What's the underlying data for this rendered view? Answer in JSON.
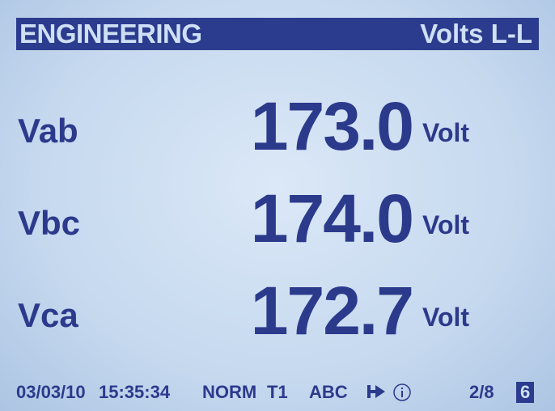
{
  "header": {
    "title": "ENGINEERING",
    "mode": "Volts L-L"
  },
  "readings": [
    {
      "label": "Vab",
      "value": "173.0",
      "unit": "Volt"
    },
    {
      "label": "Vbc",
      "value": "174.0",
      "unit": "Volt"
    },
    {
      "label": "Vca",
      "value": "172.7",
      "unit": "Volt"
    }
  ],
  "status": {
    "date": "03/03/10",
    "time": "15:35:34",
    "mode": "NORM",
    "tariff": "T1",
    "phase": "ABC",
    "page": "2/8",
    "screen": "6"
  }
}
